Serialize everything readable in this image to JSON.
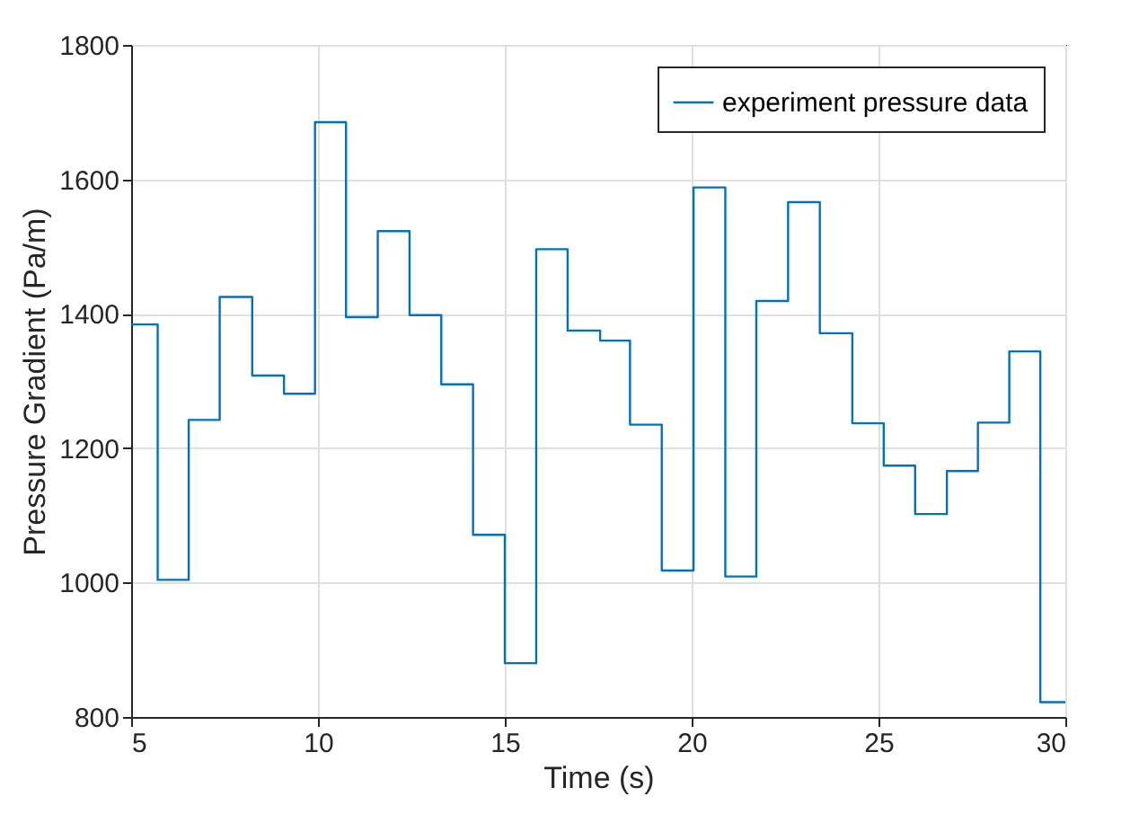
{
  "chart_data": {
    "type": "step",
    "xlabel": "Time (s)",
    "ylabel": "Pressure Gradient (Pa/m)",
    "x": [
      5,
      5.71,
      6.54,
      7.37,
      8.24,
      9.09,
      9.92,
      10.75,
      11.6,
      12.45,
      13.3,
      14.15,
      15.0,
      15.84,
      16.68,
      17.55,
      18.35,
      19.2,
      20.05,
      20.9,
      21.73,
      22.58,
      23.43,
      24.3,
      25.14,
      25.98,
      26.83,
      27.66,
      28.5,
      29.33,
      30
    ],
    "series": [
      {
        "name": "experiment pressure data",
        "color": "#0072bd",
        "values": [
          1384,
          1004,
          1242,
          1425,
          1308,
          1281,
          1685,
          1395,
          1523,
          1398,
          1295,
          1071,
          880,
          1496,
          1375,
          1360,
          1235,
          1018,
          1588,
          1009,
          1419,
          1566,
          1371,
          1237,
          1174,
          1102,
          1166,
          1238,
          1344,
          822,
          822
        ]
      }
    ],
    "xlim": [
      5,
      30
    ],
    "xticks": [
      5,
      10,
      15,
      20,
      25,
      30
    ],
    "ylim": [
      800,
      1800
    ],
    "yticks": [
      800,
      1000,
      1200,
      1400,
      1600,
      1800
    ],
    "grid": true,
    "legend": "top right",
    "line_style": "solid",
    "marker": "none"
  }
}
